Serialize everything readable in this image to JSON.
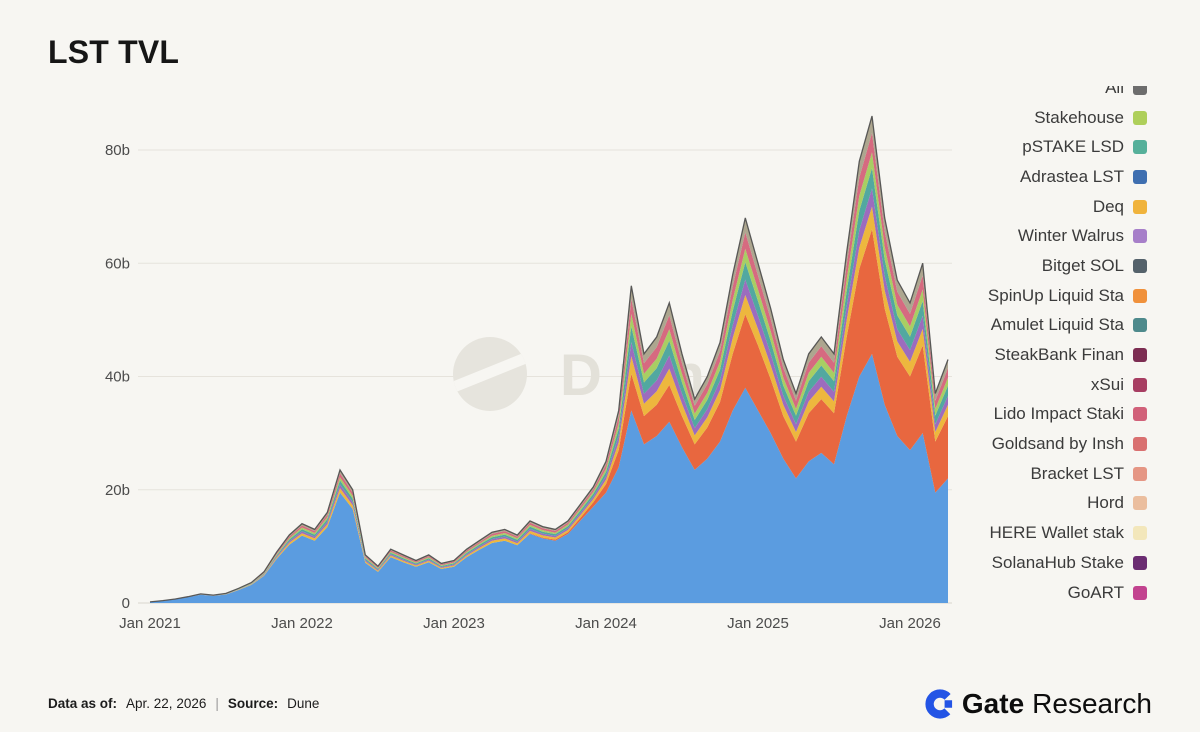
{
  "page": {
    "title": "LST TVL",
    "background": "#f7f6f2"
  },
  "watermark": {
    "text": "Dune"
  },
  "footer": {
    "data_as_of_label": "Data as of:",
    "data_as_of_value": "Apr. 22, 2026",
    "separator": "|",
    "source_label": "Source:",
    "source_value": "Dune",
    "brand_gate": "Gate",
    "brand_research": "Research"
  },
  "legend": {
    "items": [
      {
        "label": "All",
        "color": "#6d6d6d"
      },
      {
        "label": "Stakehouse",
        "color": "#aecf5a"
      },
      {
        "label": "pSTAKE LSD",
        "color": "#56b09a"
      },
      {
        "label": "Adrastea LST",
        "color": "#3f6fb0"
      },
      {
        "label": "Deq",
        "color": "#f0b33c"
      },
      {
        "label": "Winter Walrus",
        "color": "#a77fc9"
      },
      {
        "label": "Bitget SOL",
        "color": "#55626b"
      },
      {
        "label": "SpinUp Liquid Sta",
        "color": "#f0913b"
      },
      {
        "label": "Amulet Liquid Sta",
        "color": "#4e8a8c"
      },
      {
        "label": "SteakBank Finan",
        "color": "#7c2d52"
      },
      {
        "label": "xSui",
        "color": "#a73e62"
      },
      {
        "label": "Lido Impact Staki",
        "color": "#d16179"
      },
      {
        "label": "Goldsand by Insh",
        "color": "#d97070"
      },
      {
        "label": "Bracket LST",
        "color": "#e59684"
      },
      {
        "label": "Hord",
        "color": "#ebbe9e"
      },
      {
        "label": "HERE Wallet stak",
        "color": "#f3e7bb"
      },
      {
        "label": "SolanaHub Stake",
        "color": "#6b2d72"
      },
      {
        "label": "GoART",
        "color": "#c2438f"
      }
    ]
  },
  "chart_data": {
    "type": "area",
    "title": "LST TVL",
    "unit": "billions USD",
    "x_start": "Jan 2021",
    "x_end": "Apr 2026",
    "n_points": 64,
    "ylim": [
      0,
      80
    ],
    "grid": true,
    "legend_position": "right",
    "y_ticks": [
      {
        "label": "0",
        "value": 0
      },
      {
        "label": "20b",
        "value": 20
      },
      {
        "label": "40b",
        "value": 40
      },
      {
        "label": "60b",
        "value": 60
      },
      {
        "label": "80b",
        "value": 80
      }
    ],
    "x_ticks": [
      {
        "label": "Jan 2021",
        "index": 0
      },
      {
        "label": "Jan 2022",
        "index": 12
      },
      {
        "label": "Jan 2023",
        "index": 24
      },
      {
        "label": "Jan 2024",
        "index": 36
      },
      {
        "label": "Jan 2025",
        "index": 48
      },
      {
        "label": "Jan 2026",
        "index": 60
      }
    ],
    "total_line": {
      "name": "All",
      "color": "#4a4a4a"
    },
    "series": [
      {
        "name": "primary-blue",
        "color": "#5b9ce0",
        "values": [
          0.18,
          0.36,
          0.63,
          1.0,
          1.45,
          1.25,
          1.5,
          2.3,
          3.2,
          4.8,
          7.8,
          10.3,
          11.9,
          11.0,
          13.4,
          19.5,
          16.6,
          7.1,
          5.5,
          8.1,
          7.2,
          6.4,
          7.2,
          6.0,
          6.4,
          8.1,
          9.4,
          10.6,
          11.0,
          10.2,
          12.2,
          11.4,
          11.0,
          12.2,
          14.6,
          17.0,
          19.5,
          24.0,
          34.0,
          28.0,
          29.5,
          32.0,
          27.5,
          23.5,
          25.5,
          28.5,
          34.0,
          38.0,
          34.0,
          30.0,
          25.5,
          22.0,
          25.0,
          26.5,
          24.5,
          33.0,
          40.0,
          44.0,
          35.0,
          29.5,
          27.0,
          30.0,
          19.5,
          22.0
        ]
      },
      {
        "name": "secondary-orange",
        "color": "#e8673f",
        "values": [
          0,
          0,
          0,
          0,
          0,
          0,
          0,
          0,
          0,
          0,
          0,
          0,
          0,
          0,
          0,
          0,
          0,
          0,
          0,
          0,
          0,
          0,
          0,
          0,
          0,
          0,
          0,
          0,
          0,
          0,
          0.1,
          0.15,
          0.2,
          0.3,
          0.5,
          0.8,
          1.5,
          3.0,
          6.5,
          5.0,
          5.5,
          6.5,
          5.5,
          4.5,
          5.5,
          7.0,
          10.0,
          13.0,
          11.5,
          9.5,
          7.5,
          6.5,
          8.5,
          9.5,
          9.0,
          14.0,
          19.0,
          22.0,
          17.0,
          14.0,
          13.0,
          15.5,
          9.0,
          11.0
        ]
      },
      {
        "name": "band-yellow",
        "color": "#edb73e",
        "values": [
          0.0,
          0.01,
          0.01,
          0.02,
          0.03,
          0.03,
          0.04,
          0.06,
          0.08,
          0.14,
          0.24,
          0.34,
          0.42,
          0.4,
          0.52,
          0.8,
          0.68,
          0.28,
          0.2,
          0.28,
          0.26,
          0.22,
          0.26,
          0.2,
          0.22,
          0.28,
          0.32,
          0.38,
          0.4,
          0.36,
          0.44,
          0.39,
          0.36,
          0.4,
          0.48,
          0.54,
          0.8,
          1.4,
          3.1,
          2.2,
          2.4,
          2.9,
          2.2,
          1.6,
          1.8,
          2.1,
          2.8,
          3.4,
          2.9,
          2.5,
          2.0,
          1.7,
          2.1,
          2.2,
          2.1,
          3.0,
          3.8,
          4.0,
          3.2,
          2.7,
          2.6,
          2.9,
          1.7,
          2.0
        ]
      },
      {
        "name": "band-purple",
        "color": "#9c6cbe",
        "values": [
          0.0,
          0.01,
          0.01,
          0.02,
          0.02,
          0.02,
          0.03,
          0.05,
          0.06,
          0.11,
          0.19,
          0.27,
          0.34,
          0.32,
          0.42,
          0.64,
          0.54,
          0.22,
          0.16,
          0.22,
          0.21,
          0.18,
          0.21,
          0.16,
          0.18,
          0.22,
          0.26,
          0.3,
          0.32,
          0.29,
          0.35,
          0.31,
          0.29,
          0.32,
          0.38,
          0.43,
          0.64,
          1.12,
          2.48,
          1.76,
          1.92,
          2.32,
          1.76,
          1.28,
          1.44,
          1.68,
          2.24,
          2.72,
          2.32,
          2.0,
          1.6,
          1.36,
          1.68,
          1.76,
          1.68,
          2.4,
          3.04,
          3.2,
          2.56,
          2.16,
          2.08,
          2.32,
          1.36,
          1.6
        ]
      },
      {
        "name": "band-teal",
        "color": "#52a8a0",
        "values": [
          0.0,
          0.01,
          0.01,
          0.02,
          0.03,
          0.03,
          0.04,
          0.05,
          0.07,
          0.13,
          0.22,
          0.31,
          0.38,
          0.36,
          0.47,
          0.72,
          0.61,
          0.25,
          0.18,
          0.25,
          0.23,
          0.2,
          0.23,
          0.18,
          0.2,
          0.25,
          0.29,
          0.34,
          0.36,
          0.32,
          0.4,
          0.35,
          0.32,
          0.36,
          0.43,
          0.49,
          0.72,
          1.26,
          2.79,
          1.98,
          2.16,
          2.61,
          1.98,
          1.44,
          1.62,
          1.89,
          2.52,
          3.06,
          2.61,
          2.25,
          1.8,
          1.53,
          1.89,
          1.98,
          1.89,
          2.7,
          3.42,
          3.6,
          2.88,
          2.43,
          2.34,
          2.61,
          1.53,
          1.8
        ]
      },
      {
        "name": "band-green",
        "color": "#a8ce63",
        "values": [
          0.0,
          0.01,
          0.01,
          0.01,
          0.02,
          0.02,
          0.03,
          0.04,
          0.06,
          0.1,
          0.17,
          0.24,
          0.29,
          0.28,
          0.36,
          0.56,
          0.48,
          0.2,
          0.14,
          0.2,
          0.18,
          0.15,
          0.18,
          0.14,
          0.15,
          0.2,
          0.22,
          0.27,
          0.28,
          0.25,
          0.31,
          0.27,
          0.25,
          0.28,
          0.34,
          0.38,
          0.56,
          0.98,
          2.17,
          1.54,
          1.68,
          2.03,
          1.54,
          1.12,
          1.26,
          1.47,
          1.96,
          2.38,
          2.03,
          1.75,
          1.4,
          1.19,
          1.47,
          1.54,
          1.47,
          2.1,
          2.66,
          2.8,
          2.24,
          1.89,
          1.82,
          2.03,
          1.19,
          1.4
        ]
      },
      {
        "name": "band-pink",
        "color": "#d66a80",
        "values": [
          0.0,
          0.01,
          0.01,
          0.02,
          0.03,
          0.03,
          0.03,
          0.05,
          0.07,
          0.12,
          0.2,
          0.29,
          0.36,
          0.34,
          0.44,
          0.68,
          0.58,
          0.24,
          0.17,
          0.24,
          0.22,
          0.19,
          0.22,
          0.17,
          0.19,
          0.24,
          0.27,
          0.32,
          0.34,
          0.31,
          0.37,
          0.33,
          0.31,
          0.34,
          0.41,
          0.46,
          0.68,
          1.19,
          2.64,
          1.87,
          2.04,
          2.47,
          1.87,
          1.36,
          1.53,
          1.79,
          2.38,
          2.89,
          2.47,
          2.13,
          1.7,
          1.45,
          1.79,
          1.87,
          1.79,
          2.55,
          3.23,
          3.4,
          2.72,
          2.3,
          2.21,
          2.47,
          1.45,
          1.7
        ]
      },
      {
        "name": "band-others",
        "color": "#ada68f",
        "values": [
          0.01,
          0.01,
          0.02,
          0.02,
          0.02,
          0.02,
          0.03,
          0.05,
          0.06,
          0.11,
          0.18,
          0.26,
          0.32,
          0.3,
          0.39,
          0.6,
          0.51,
          0.21,
          0.15,
          0.21,
          0.2,
          0.17,
          0.2,
          0.15,
          0.17,
          0.21,
          0.24,
          0.29,
          0.3,
          0.27,
          0.33,
          0.29,
          0.27,
          0.3,
          0.36,
          0.41,
          0.6,
          1.05,
          2.33,
          1.65,
          1.8,
          2.18,
          1.65,
          1.2,
          1.35,
          1.58,
          2.1,
          2.55,
          2.18,
          1.88,
          1.5,
          1.28,
          1.58,
          1.65,
          1.58,
          2.25,
          2.85,
          3.0,
          2.4,
          2.03,
          1.95,
          2.18,
          1.28,
          1.5
        ]
      }
    ]
  }
}
